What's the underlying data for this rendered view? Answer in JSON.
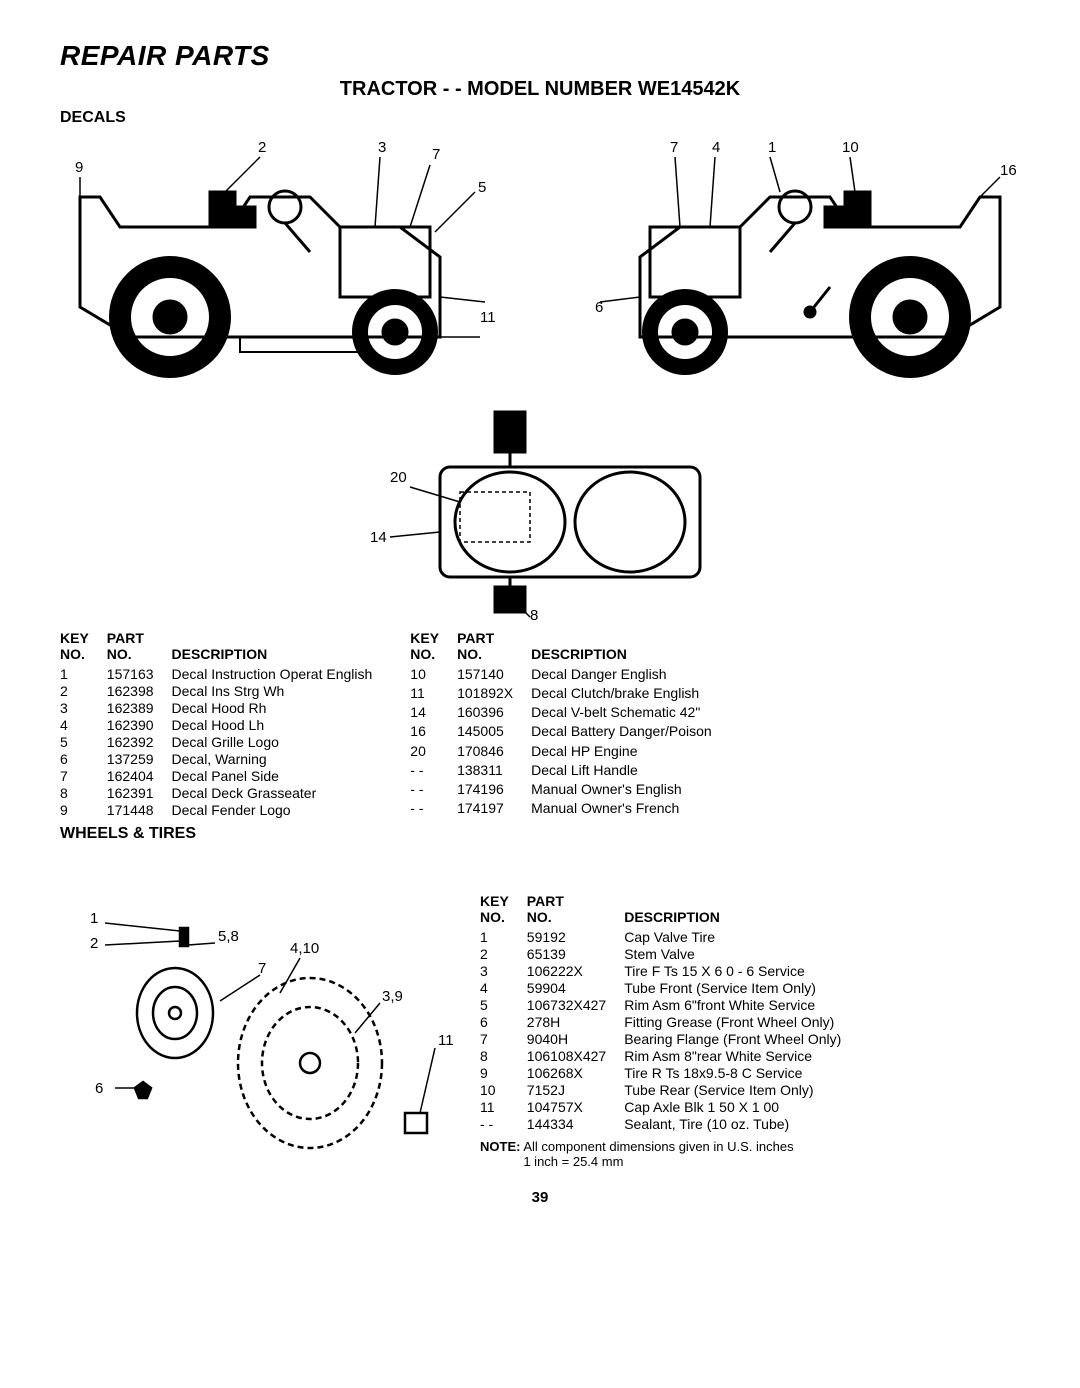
{
  "page": {
    "title": "REPAIR PARTS",
    "subtitle": "TRACTOR - - MODEL NUMBER WE14542K",
    "page_number": "39"
  },
  "decals": {
    "heading": "DECALS",
    "table_headers": {
      "key": "KEY NO.",
      "part": "PART NO.",
      "desc": "DESCRIPTION"
    },
    "left_rows": [
      {
        "key": "1",
        "part": "157163",
        "desc": "Decal Instruction Operat English"
      },
      {
        "key": "2",
        "part": "162398",
        "desc": "Decal Ins Strg Wh"
      },
      {
        "key": "3",
        "part": "162389",
        "desc": "Decal Hood Rh"
      },
      {
        "key": "4",
        "part": "162390",
        "desc": "Decal Hood Lh"
      },
      {
        "key": "5",
        "part": "162392",
        "desc": "Decal Grille Logo"
      },
      {
        "key": "6",
        "part": "137259",
        "desc": "Decal, Warning"
      },
      {
        "key": "7",
        "part": "162404",
        "desc": "Decal Panel Side"
      },
      {
        "key": "8",
        "part": "162391",
        "desc": "Decal Deck Grasseater"
      },
      {
        "key": "9",
        "part": "171448",
        "desc": "Decal Fender Logo"
      }
    ],
    "right_rows": [
      {
        "key": "10",
        "part": "157140",
        "desc": "Decal Danger English"
      },
      {
        "key": "11",
        "part": "101892X",
        "desc": "Decal Clutch/brake English"
      },
      {
        "key": "14",
        "part": "160396",
        "desc": "Decal V-belt Schematic 42\""
      },
      {
        "key": "16",
        "part": "145005",
        "desc": "Decal Battery Danger/Poison"
      },
      {
        "key": "20",
        "part": "170846",
        "desc": "Decal HP Engine"
      },
      {
        "key": "- -",
        "part": "138311",
        "desc": "Decal Lift Handle"
      },
      {
        "key": "- -",
        "part": "174196",
        "desc": "Manual Owner's English"
      },
      {
        "key": "- -",
        "part": "174197",
        "desc": "Manual Owner's French"
      }
    ],
    "diagram_labels_left": {
      "l2": "2",
      "l3": "3",
      "l7": "7",
      "l9": "9",
      "l5": "5",
      "l11": "11",
      "l6": "6",
      "l8": "8"
    },
    "diagram_labels_right": {
      "l7": "7",
      "l4": "4",
      "l1": "1",
      "l10": "10",
      "l16": "16"
    },
    "diagram_labels_deck": {
      "l20": "20",
      "l14": "14"
    }
  },
  "wheels": {
    "heading": "WHEELS & TIRES",
    "table_headers": {
      "key": "KEY NO.",
      "part": "PART NO.",
      "desc": "DESCRIPTION"
    },
    "rows": [
      {
        "key": "1",
        "part": "59192",
        "desc": "Cap Valve Tire"
      },
      {
        "key": "2",
        "part": "65139",
        "desc": "Stem Valve"
      },
      {
        "key": "3",
        "part": "106222X",
        "desc": "Tire F Ts 15 X 6 0 - 6 Service"
      },
      {
        "key": "4",
        "part": "59904",
        "desc": "Tube  Front (Service Item Only)"
      },
      {
        "key": "5",
        "part": "106732X427",
        "desc": "Rim Asm 6\"front White Service"
      },
      {
        "key": "6",
        "part": "278H",
        "desc": "Fitting Grease (Front Wheel Only)"
      },
      {
        "key": "7",
        "part": "9040H",
        "desc": "Bearing Flange (Front Wheel Only)"
      },
      {
        "key": "8",
        "part": "106108X427",
        "desc": "Rim Asm 8\"rear White Service"
      },
      {
        "key": "9",
        "part": "106268X",
        "desc": "Tire R Ts 18x9.5-8 C Service"
      },
      {
        "key": "10",
        "part": "7152J",
        "desc": "Tube Rear (Service Item Only)"
      },
      {
        "key": "11",
        "part": "104757X",
        "desc": "Cap Axle Blk 1 50 X 1 00"
      },
      {
        "key": "- -",
        "part": "144334",
        "desc": "Sealant, Tire (10 oz. Tube)"
      }
    ],
    "diagram_labels": {
      "l1": "1",
      "l2": "2",
      "l58": "5,8",
      "l410": "4,10",
      "l7": "7",
      "l39": "3,9",
      "l6": "6",
      "l11": "11"
    },
    "note_bold": "NOTE:",
    "note_text": " All component dimensions given in U.S. inches",
    "note_sub": "1 inch = 25.4 mm"
  }
}
